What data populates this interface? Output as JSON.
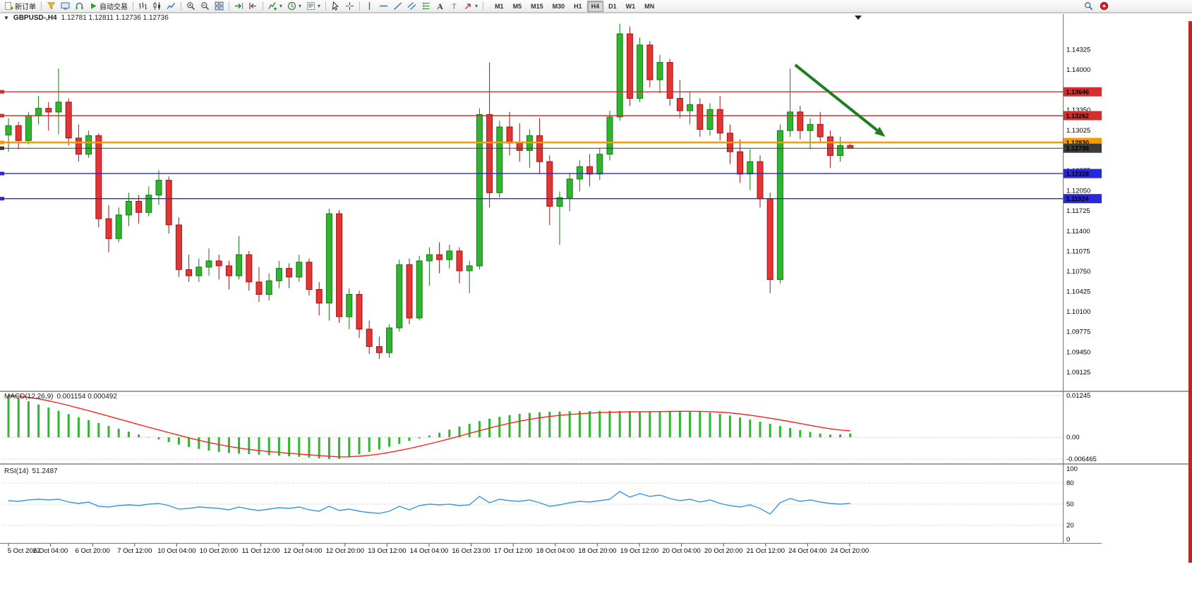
{
  "window": {
    "symbol_period": "GBPUSD-,H4",
    "ohlc": "1.12781 1.12811 1.12736 1.12736",
    "collapse_arrow": "▼"
  },
  "toolbar": {
    "items": [
      {
        "type": "button",
        "name": "new-order-button",
        "icon": "new-order-icon",
        "label": "新订单"
      },
      {
        "type": "sep"
      },
      {
        "type": "button",
        "name": "chart-profile-button",
        "icon": "funnel-icon"
      },
      {
        "type": "button",
        "name": "market-watch-button",
        "icon": "monitor-icon"
      },
      {
        "type": "button",
        "name": "support-button",
        "icon": "headset-icon"
      },
      {
        "type": "button",
        "name": "auto-trading-button",
        "icon": "play-icon",
        "label": "自动交易"
      },
      {
        "type": "sep"
      },
      {
        "type": "button",
        "name": "bar-chart-button",
        "icon": "bar-chart-icon"
      },
      {
        "type": "button",
        "name": "candlestick-chart-button",
        "icon": "candlestick-icon"
      },
      {
        "type": "button",
        "name": "line-chart-button",
        "icon": "line-chart-icon"
      },
      {
        "type": "sep"
      },
      {
        "type": "button",
        "name": "zoom-in-button",
        "icon": "zoom-in-icon"
      },
      {
        "type": "button",
        "name": "zoom-out-button",
        "icon": "zoom-out-icon"
      },
      {
        "type": "button",
        "name": "tile-windows-button",
        "icon": "tile-windows-icon"
      },
      {
        "type": "sep"
      },
      {
        "type": "button",
        "name": "auto-scroll-button",
        "icon": "auto-scroll-icon"
      },
      {
        "type": "button",
        "name": "chart-shift-button",
        "icon": "shift-end-icon"
      },
      {
        "type": "sep"
      },
      {
        "type": "button",
        "name": "indicators-button",
        "icon": "indicators-icon",
        "caret": true
      },
      {
        "type": "button",
        "name": "periods-button",
        "icon": "periods-icon",
        "caret": true
      },
      {
        "type": "button",
        "name": "templates-button",
        "icon": "template-icon",
        "caret": true
      },
      {
        "type": "sep"
      },
      {
        "type": "button",
        "name": "cursor-button",
        "icon": "cursor-icon"
      },
      {
        "type": "button",
        "name": "crosshair-button",
        "icon": "crosshair-icon"
      },
      {
        "type": "sep"
      },
      {
        "type": "button",
        "name": "vertical-line-button",
        "icon": "vline-icon"
      },
      {
        "type": "button",
        "name": "horizontal-line-button",
        "icon": "hline-icon"
      },
      {
        "type": "button",
        "name": "trendline-button",
        "icon": "trendline-icon"
      },
      {
        "type": "button",
        "name": "channel-button",
        "icon": "channel-icon"
      },
      {
        "type": "button",
        "name": "fibonacci-button",
        "icon": "fibonacci-icon"
      },
      {
        "type": "button",
        "name": "text-button",
        "icon": "text-icon"
      },
      {
        "type": "button",
        "name": "text-label-button",
        "icon": "label-icon"
      },
      {
        "type": "button",
        "name": "arrows-button",
        "icon": "arrow-tool-icon",
        "caret": true
      },
      {
        "type": "sep"
      }
    ],
    "timeframes": [
      {
        "label": "M1"
      },
      {
        "label": "M5"
      },
      {
        "label": "M15"
      },
      {
        "label": "M30"
      },
      {
        "label": "H1"
      },
      {
        "label": "H4",
        "active": true
      },
      {
        "label": "D1"
      },
      {
        "label": "W1"
      },
      {
        "label": "MN"
      }
    ],
    "right_items": [
      {
        "name": "search-button",
        "icon": "search-icon"
      },
      {
        "name": "alert-button",
        "icon": "alert-icon"
      }
    ]
  },
  "colors": {
    "bull": "#30b530",
    "bull_border": "#157a15",
    "bear": "#e23535",
    "bear_border": "#a51212",
    "macd_hist": "#30b530",
    "macd_signal": "#ff2020",
    "rsi": "#3d96dd",
    "resistance": "#d03030",
    "pivot": "#f59a00",
    "current": "#3a3a3a",
    "support": "#2828d8",
    "arrow": "#1e7d1e"
  },
  "chart_data": {
    "type": "candlestick",
    "symbol": "GBPUSD-",
    "timeframe": "H4",
    "price_axis": {
      "ylim": [
        1.0884,
        1.1483
      ],
      "tick_start": 1.14325,
      "tick_step": 0.00325,
      "tick_count": 17
    },
    "time_labels": [
      "5 Oct 2022",
      "6 Oct 04:00",
      "6 Oct 20:00",
      "7 Oct 12:00",
      "10 Oct 04:00",
      "10 Oct 20:00",
      "11 Oct 12:00",
      "12 Oct 04:00",
      "12 Oct 20:00",
      "13 Oct 12:00",
      "14 Oct 04:00",
      "16 Oct 23:00",
      "17 Oct 12:00",
      "18 Oct 04:00",
      "18 Oct 20:00",
      "19 Oct 12:00",
      "20 Oct 04:00",
      "20 Oct 20:00",
      "21 Oct 12:00",
      "24 Oct 04:00",
      "24 Oct 20:00"
    ],
    "candles": [
      [
        1.1295,
        1.1322,
        1.1268,
        1.131
      ],
      [
        1.131,
        1.1316,
        1.1272,
        1.1286
      ],
      [
        1.1286,
        1.1332,
        1.128,
        1.1326
      ],
      [
        1.1326,
        1.1358,
        1.1312,
        1.1338
      ],
      [
        1.1338,
        1.1348,
        1.1302,
        1.1332
      ],
      [
        1.1332,
        1.1402,
        1.1296,
        1.1348
      ],
      [
        1.1348,
        1.1354,
        1.1278,
        1.129
      ],
      [
        1.129,
        1.1312,
        1.1252,
        1.1264
      ],
      [
        1.1264,
        1.1302,
        1.1258,
        1.1294
      ],
      [
        1.1294,
        1.1298,
        1.1146,
        1.116
      ],
      [
        1.116,
        1.1182,
        1.1106,
        1.1128
      ],
      [
        1.1128,
        1.1178,
        1.1122,
        1.1166
      ],
      [
        1.1166,
        1.1202,
        1.1148,
        1.1188
      ],
      [
        1.1188,
        1.1198,
        1.1152,
        1.117
      ],
      [
        1.117,
        1.1212,
        1.1164,
        1.1198
      ],
      [
        1.1198,
        1.1238,
        1.1182,
        1.1222
      ],
      [
        1.1222,
        1.1228,
        1.1136,
        1.115
      ],
      [
        1.115,
        1.1162,
        1.1066,
        1.1078
      ],
      [
        1.1078,
        1.1102,
        1.1058,
        1.1068
      ],
      [
        1.1068,
        1.1096,
        1.1058,
        1.1082
      ],
      [
        1.1082,
        1.1112,
        1.1068,
        1.1092
      ],
      [
        1.1092,
        1.1102,
        1.1062,
        1.1084
      ],
      [
        1.1084,
        1.1092,
        1.1046,
        1.1068
      ],
      [
        1.1068,
        1.1132,
        1.1062,
        1.1102
      ],
      [
        1.1102,
        1.1108,
        1.1044,
        1.1058
      ],
      [
        1.1058,
        1.1082,
        1.1026,
        1.1038
      ],
      [
        1.1038,
        1.1072,
        1.1028,
        1.106
      ],
      [
        1.106,
        1.1092,
        1.1048,
        1.108
      ],
      [
        1.108,
        1.1088,
        1.1048,
        1.1066
      ],
      [
        1.1066,
        1.1102,
        1.1058,
        1.109
      ],
      [
        1.109,
        1.1096,
        1.1036,
        1.1046
      ],
      [
        1.1046,
        1.1058,
        1.1004,
        1.1024
      ],
      [
        1.1024,
        1.1176,
        1.0996,
        1.1168
      ],
      [
        1.1168,
        1.1174,
        1.0992,
        1.1002
      ],
      [
        1.1002,
        1.1048,
        1.0982,
        1.1038
      ],
      [
        1.1038,
        1.1044,
        1.0968,
        1.0982
      ],
      [
        1.0982,
        1.0996,
        1.0942,
        1.0954
      ],
      [
        1.0954,
        1.097,
        1.0934,
        1.0944
      ],
      [
        1.0944,
        1.099,
        1.0936,
        1.0984
      ],
      [
        1.0984,
        1.1094,
        1.0978,
        1.1086
      ],
      [
        1.1086,
        1.1096,
        1.099,
        1.1
      ],
      [
        1.1,
        1.11,
        1.0996,
        1.1092
      ],
      [
        1.1092,
        1.1114,
        1.1052,
        1.1102
      ],
      [
        1.1102,
        1.1122,
        1.1072,
        1.1094
      ],
      [
        1.1094,
        1.1118,
        1.108,
        1.1108
      ],
      [
        1.1108,
        1.1114,
        1.1056,
        1.1076
      ],
      [
        1.1076,
        1.1092,
        1.104,
        1.1084
      ],
      [
        1.1084,
        1.1338,
        1.1078,
        1.1328
      ],
      [
        1.1328,
        1.1412,
        1.1178,
        1.1202
      ],
      [
        1.1202,
        1.1318,
        1.1194,
        1.1308
      ],
      [
        1.1308,
        1.1332,
        1.1262,
        1.1282
      ],
      [
        1.1282,
        1.1314,
        1.1252,
        1.127
      ],
      [
        1.127,
        1.1304,
        1.1242,
        1.1294
      ],
      [
        1.1294,
        1.1322,
        1.1232,
        1.1252
      ],
      [
        1.1252,
        1.1262,
        1.115,
        1.118
      ],
      [
        1.118,
        1.1204,
        1.1118,
        1.1194
      ],
      [
        1.1194,
        1.1234,
        1.1172,
        1.1224
      ],
      [
        1.1224,
        1.1254,
        1.1204,
        1.1244
      ],
      [
        1.1244,
        1.1264,
        1.1212,
        1.1232
      ],
      [
        1.1232,
        1.1274,
        1.1222,
        1.1264
      ],
      [
        1.1264,
        1.1334,
        1.1254,
        1.1324
      ],
      [
        1.1324,
        1.1474,
        1.1318,
        1.1458
      ],
      [
        1.1458,
        1.147,
        1.1342,
        1.1354
      ],
      [
        1.1354,
        1.1452,
        1.1348,
        1.144
      ],
      [
        1.144,
        1.1446,
        1.1372,
        1.1384
      ],
      [
        1.1384,
        1.1424,
        1.1362,
        1.1412
      ],
      [
        1.1412,
        1.1418,
        1.1342,
        1.1354
      ],
      [
        1.1354,
        1.1384,
        1.1322,
        1.1334
      ],
      [
        1.1334,
        1.1364,
        1.1312,
        1.1344
      ],
      [
        1.1344,
        1.1354,
        1.1292,
        1.1304
      ],
      [
        1.1304,
        1.1346,
        1.1294,
        1.1336
      ],
      [
        1.1336,
        1.1358,
        1.1286,
        1.1298
      ],
      [
        1.1298,
        1.1312,
        1.1248,
        1.1268
      ],
      [
        1.1268,
        1.1288,
        1.1218,
        1.1232
      ],
      [
        1.1232,
        1.1272,
        1.1206,
        1.1252
      ],
      [
        1.1252,
        1.1262,
        1.1178,
        1.1192
      ],
      [
        1.1192,
        1.1202,
        1.104,
        1.1062
      ],
      [
        1.1062,
        1.1312,
        1.1056,
        1.1302
      ],
      [
        1.1302,
        1.1402,
        1.1292,
        1.1332
      ],
      [
        1.1332,
        1.1342,
        1.1288,
        1.1302
      ],
      [
        1.1302,
        1.1322,
        1.1272,
        1.1312
      ],
      [
        1.1312,
        1.1332,
        1.1282,
        1.1292
      ],
      [
        1.1292,
        1.1302,
        1.1242,
        1.1262
      ],
      [
        1.1262,
        1.1292,
        1.1252,
        1.1278
      ],
      [
        1.12781,
        1.12811,
        1.12736,
        1.12736
      ]
    ],
    "hlines": [
      {
        "price": 1.13646,
        "label": "1.13646",
        "color": "#d03030",
        "width": 1.4
      },
      {
        "price": 1.13262,
        "label": "1.13262",
        "color": "#d03030",
        "width": 1.4
      },
      {
        "price": 1.1283,
        "label": "1.12830",
        "color": "#f59a00",
        "width": 2.4
      },
      {
        "price": 1.12736,
        "label": "1.12736",
        "color": "#3a3a3a",
        "width": 1
      },
      {
        "price": 1.12328,
        "label": "1.12328",
        "color": "#2828d8",
        "width": 1.4
      },
      {
        "price": 1.11924,
        "label": "1.11924",
        "color": "#2828d8",
        "width": 1.4
      }
    ],
    "arrow": {
      "i1": 78.5,
      "p1": 1.1408,
      "i2": 87.5,
      "p2": 1.1292,
      "color": "#1e7d1e"
    },
    "indicators": {
      "macd": {
        "title": "MACD(12,26,9)",
        "values_text": "0.001154 0.000492",
        "axis": {
          "max": 0.01245,
          "min": -0.006465,
          "labels": [
            {
              "v": 0.01245,
              "t": "0.01245"
            },
            {
              "v": 0,
              "t": "0.00"
            },
            {
              "v": -0.006465,
              "t": "-0.006465"
            }
          ]
        },
        "histogram": [
          0.01245,
          0.01165,
          0.01075,
          0.0098,
          0.00885,
          0.0079,
          0.00695,
          0.006,
          0.0051,
          0.00425,
          0.0034,
          0.00255,
          0.0017,
          0.00085,
          0.0001,
          -0.0006,
          -0.0014,
          -0.00215,
          -0.00285,
          -0.00345,
          -0.00395,
          -0.00435,
          -0.00465,
          -0.00485,
          -0.005,
          -0.00515,
          -0.0053,
          -0.00545,
          -0.0056,
          -0.0058,
          -0.006,
          -0.00625,
          -0.00645,
          -0.0064,
          -0.0057,
          -0.00505,
          -0.00435,
          -0.0036,
          -0.0028,
          -0.00195,
          -0.0011,
          -0.0003,
          0.00055,
          0.0014,
          0.0023,
          0.0032,
          0.00405,
          0.00485,
          0.00555,
          0.00615,
          0.00662,
          0.007,
          0.0073,
          0.0075,
          0.00762,
          0.0077,
          0.00776,
          0.0078,
          0.00784,
          0.00788,
          0.0079,
          0.00786,
          0.0078,
          0.00774,
          0.00772,
          0.00778,
          0.00786,
          0.0079,
          0.0078,
          0.00762,
          0.00738,
          0.007,
          0.0065,
          0.00592,
          0.0053,
          0.00466,
          0.00402,
          0.0034,
          0.00278,
          0.00218,
          0.00162,
          0.00115,
          0.0008,
          0.0009,
          0.001154
        ]
      },
      "rsi": {
        "title": "RSI(14)",
        "value_text": "51.2487",
        "levels": [
          80,
          50,
          20
        ],
        "axis_labels": [
          {
            "v": 100,
            "t": "100"
          },
          {
            "v": 80,
            "t": "80"
          },
          {
            "v": 50,
            "t": "50"
          },
          {
            "v": 20,
            "t": "20"
          },
          {
            "v": 0,
            "t": "0"
          }
        ],
        "values": [
          55,
          54,
          56,
          57,
          56,
          57,
          53,
          51,
          53,
          47,
          46,
          48,
          49,
          48,
          50,
          51,
          48,
          43,
          44,
          46,
          45,
          44,
          42,
          46,
          43,
          41,
          43,
          45,
          44,
          46,
          42,
          40,
          47,
          41,
          43,
          40,
          38,
          37,
          40,
          47,
          42,
          48,
          50,
          49,
          50,
          48,
          49,
          61,
          52,
          57,
          55,
          54,
          56,
          52,
          47,
          49,
          52,
          54,
          53,
          55,
          57,
          68,
          60,
          65,
          61,
          63,
          58,
          55,
          57,
          53,
          56,
          51,
          48,
          46,
          49,
          44,
          36,
          52,
          58,
          54,
          56,
          53,
          51,
          50,
          51.2
        ]
      }
    }
  }
}
